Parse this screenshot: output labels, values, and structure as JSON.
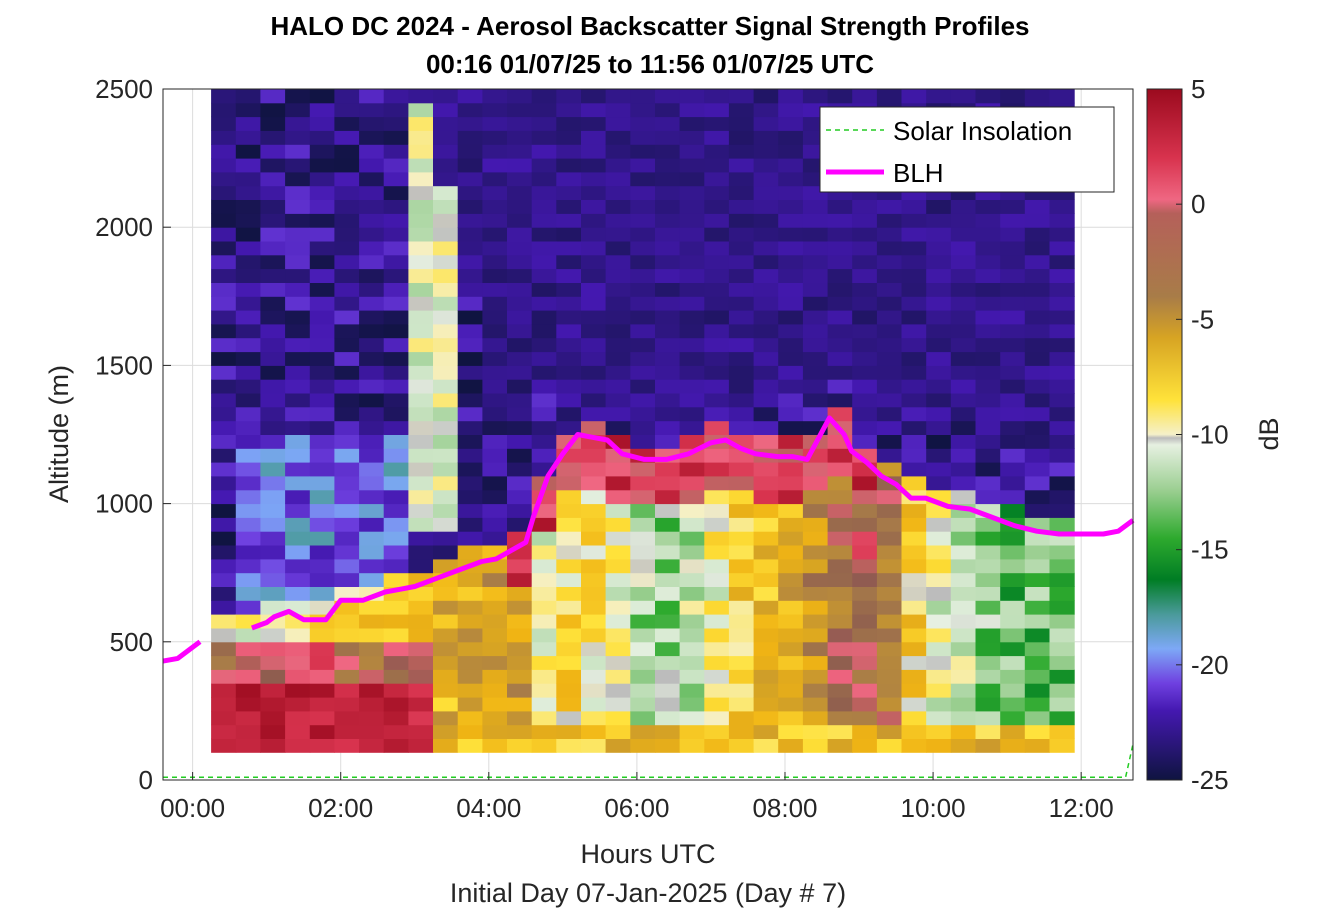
{
  "chart_data": {
    "type": "heatmap",
    "title": "HALO DC 2024 - Aerosol Backscatter Signal Strength Profiles",
    "subtitle": "00:16 01/07/25 to 11:56 01/07/25  UTC",
    "xlabel": "Hours UTC",
    "footer": "Initial Day 07-Jan-2025 (Day # 7)",
    "ylabel": "Altitude (m)",
    "colorbar_label": "dB",
    "xlim": [
      -0.4,
      12.7
    ],
    "ylim": [
      0,
      2500
    ],
    "x_ticks": [
      0,
      2,
      4,
      6,
      8,
      10,
      12
    ],
    "x_tick_labels": [
      "00:00",
      "02:00",
      "04:00",
      "06:00",
      "08:00",
      "10:00",
      "12:00"
    ],
    "y_ticks": [
      0,
      500,
      1000,
      1500,
      2000,
      2500
    ],
    "y_tick_labels": [
      "0",
      "500",
      "1000",
      "1500",
      "2000",
      "2500"
    ],
    "clim": [
      -25,
      5
    ],
    "colorbar_ticks": [
      5,
      0,
      -5,
      -10,
      -15,
      -20,
      -25
    ],
    "colorbar_tick_labels": [
      "5",
      "0",
      "-5",
      "-10",
      "-15",
      "-20",
      "-25"
    ],
    "legend": {
      "position": "top-right",
      "entries": [
        {
          "label": "Solar Insolation",
          "color": "#22cc22",
          "style": "dashed"
        },
        {
          "label": "BLH",
          "color": "#ff00ff",
          "style": "solid"
        }
      ]
    },
    "heatmap": {
      "x_start": 0.25,
      "x_step": 0.333,
      "columns": 35,
      "y_start": 100,
      "y_step": 50,
      "rows": 48
    },
    "series": [
      {
        "name": "BLH",
        "color": "#ff00ff",
        "x": [
          -0.4,
          -0.2,
          0.0,
          0.1,
          0.5,
          0.8,
          1.0,
          1.1,
          1.3,
          1.5,
          1.8,
          2.0,
          2.3,
          2.6,
          2.8,
          3.0,
          3.3,
          3.6,
          3.9,
          4.1,
          4.3,
          4.5,
          4.6,
          4.8,
          5.0,
          5.2,
          5.4,
          5.6,
          5.8,
          6.1,
          6.4,
          6.7,
          7.0,
          7.2,
          7.4,
          7.6,
          7.9,
          8.1,
          8.3,
          8.5,
          8.6,
          8.8,
          8.9,
          9.1,
          9.3,
          9.5,
          9.7,
          9.9,
          10.2,
          10.5,
          10.8,
          11.1,
          11.4,
          11.7,
          12.0,
          12.3,
          12.5,
          12.7
        ],
        "y": [
          430,
          440,
          480,
          500,
          null,
          550,
          570,
          590,
          610,
          580,
          580,
          650,
          650,
          680,
          690,
          700,
          730,
          760,
          790,
          800,
          830,
          860,
          950,
          1100,
          1180,
          1250,
          1240,
          1230,
          1180,
          1160,
          1160,
          1180,
          1220,
          1230,
          1200,
          1180,
          1170,
          1170,
          1160,
          1260,
          1310,
          1250,
          1190,
          1150,
          1100,
          1070,
          1020,
          1020,
          990,
          980,
          950,
          920,
          900,
          890,
          890,
          890,
          900,
          940
        ]
      },
      {
        "name": "Solar Insolation",
        "color": "#22cc22",
        "x": [
          -0.4,
          12.6,
          12.7
        ],
        "y": [
          10,
          10,
          130
        ]
      }
    ]
  }
}
